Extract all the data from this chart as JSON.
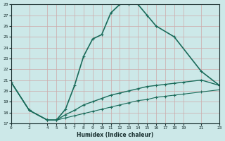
{
  "xlabel": "Humidex (Indice chaleur)",
  "background_color": "#cce8e8",
  "grid_color": "#b0cccc",
  "line_color": "#1a6b5a",
  "xlim": [
    0,
    23
  ],
  "ylim": [
    17,
    28
  ],
  "xticks": [
    0,
    2,
    4,
    5,
    6,
    7,
    8,
    9,
    10,
    11,
    12,
    13,
    14,
    15,
    16,
    17,
    18,
    19,
    21,
    23
  ],
  "yticks": [
    17,
    18,
    19,
    20,
    21,
    22,
    23,
    24,
    25,
    26,
    27,
    28
  ],
  "series": [
    {
      "x": [
        0,
        2,
        4,
        5,
        6,
        7,
        8,
        9,
        10,
        11,
        12,
        13,
        14,
        15,
        16,
        18,
        21,
        23
      ],
      "y": [
        20.8,
        18.2,
        17.3,
        17.3,
        18.3,
        20.5,
        23.2,
        24.8,
        25.2,
        27.2,
        28.0,
        28.0,
        28.0,
        27.0,
        26.0,
        25.0,
        21.8,
        20.5
      ],
      "linewidth": 1.2,
      "marker": "+"
    },
    {
      "x": [
        0,
        2,
        4,
        5,
        6,
        7,
        8,
        9,
        10,
        11,
        12,
        13,
        14,
        15,
        16,
        17,
        18,
        19,
        21,
        23
      ],
      "y": [
        20.8,
        18.2,
        17.3,
        17.3,
        17.8,
        18.2,
        18.7,
        19.0,
        19.3,
        19.6,
        19.8,
        20.0,
        20.2,
        20.4,
        20.5,
        20.6,
        20.7,
        20.8,
        21.0,
        20.5
      ],
      "linewidth": 1.0,
      "marker": "+"
    },
    {
      "x": [
        0,
        2,
        4,
        5,
        6,
        7,
        8,
        9,
        10,
        11,
        12,
        13,
        14,
        15,
        16,
        17,
        18,
        19,
        21,
        23
      ],
      "y": [
        20.8,
        18.2,
        17.3,
        17.3,
        17.5,
        17.7,
        17.9,
        18.1,
        18.3,
        18.5,
        18.7,
        18.9,
        19.1,
        19.2,
        19.4,
        19.5,
        19.6,
        19.7,
        19.9,
        20.1
      ],
      "linewidth": 0.8,
      "marker": "+"
    }
  ]
}
